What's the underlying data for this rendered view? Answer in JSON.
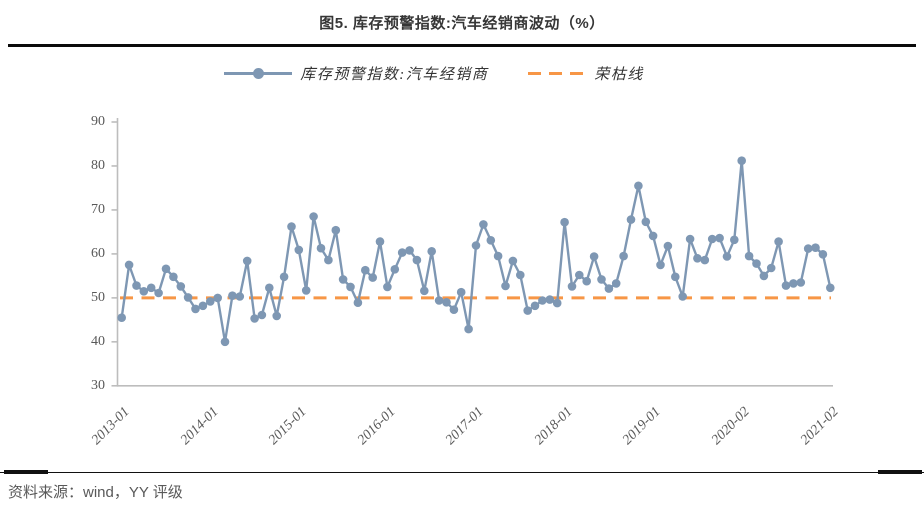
{
  "figure": {
    "title": "图5. 库存预警指数:汽车经销商波动（%）",
    "source_note": "资料来源：wind，YY 评级"
  },
  "legend": {
    "series_label": "库存预警指数:汽车经销商",
    "threshold_label": "荣枯线"
  },
  "colors": {
    "series": "#7e97b3",
    "threshold": "#f79646",
    "axis": "#bdbdbd",
    "tick_text": "#595959",
    "title_text": "#363636",
    "rule": "#111111"
  },
  "chart_data": {
    "type": "line",
    "title": "图5. 库存预警指数:汽车经销商波动（%）",
    "x_description": "monthly points from 2013-01 to 2021-02 (no 2020-01 point)",
    "point_count": 97,
    "x_tick_indices": [
      0,
      12,
      24,
      36,
      48,
      60,
      72,
      84,
      96
    ],
    "x_tick_labels": [
      "2013-01",
      "2014-01",
      "2015-01",
      "2016-01",
      "2017-01",
      "2018-01",
      "2019-01",
      "2020-02",
      "2021-02"
    ],
    "ylim": [
      30,
      90
    ],
    "y_ticks": [
      30,
      40,
      50,
      60,
      70,
      80,
      90
    ],
    "grid": false,
    "legend_position": "top",
    "series": [
      {
        "name": "库存预警指数:汽车经销商",
        "type": "line",
        "marker": "circle",
        "values": [
          45.5,
          57.5,
          52.8,
          51.5,
          52.3,
          51.1,
          56.6,
          54.8,
          52.6,
          50.1,
          47.5,
          48.2,
          49.2,
          50.0,
          40.0,
          50.5,
          50.3,
          58.4,
          45.3,
          46.1,
          52.3,
          45.9,
          54.8,
          66.2,
          60.9,
          51.7,
          68.5,
          61.3,
          58.6,
          65.4,
          54.2,
          52.5,
          48.9,
          56.3,
          54.6,
          62.8,
          52.5,
          56.5,
          60.3,
          60.8,
          58.6,
          51.6,
          60.6,
          49.4,
          49.0,
          47.3,
          51.3,
          42.9,
          61.9,
          66.7,
          63.1,
          59.5,
          52.7,
          58.4,
          55.2,
          47.1,
          48.2,
          49.4,
          49.6,
          48.8,
          67.2,
          52.6,
          55.2,
          53.8,
          59.4,
          54.2,
          52.1,
          53.3,
          59.5,
          67.8,
          75.5,
          67.3,
          64.1,
          57.5,
          61.8,
          54.8,
          50.3,
          63.4,
          59.0,
          58.6,
          63.4,
          63.6,
          59.4,
          63.2,
          81.2,
          59.5,
          57.8,
          55.0,
          56.8,
          62.8,
          52.8,
          53.3,
          53.5,
          61.2,
          61.4,
          59.9,
          52.3
        ]
      },
      {
        "name": "荣枯线",
        "type": "dashed-constant",
        "value": 50
      }
    ]
  }
}
